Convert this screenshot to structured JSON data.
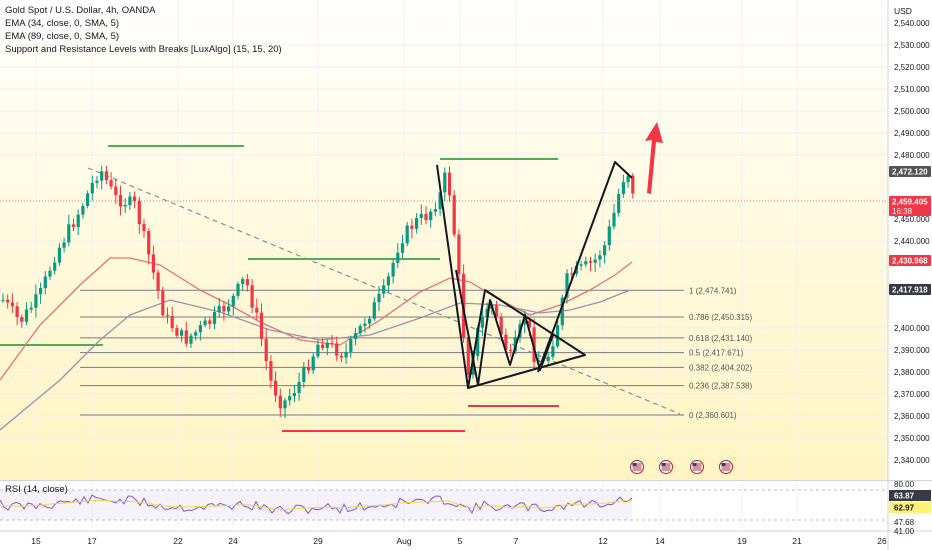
{
  "legend": {
    "title": "Gold Spot / U.S. Dollar, 4h, OANDA",
    "ema34": "EMA (34, close, 0, SMA, 5)",
    "ema89": "EMA (89, close, 0, SMA, 5)",
    "indicator": "Support and Resistance Levels with Breaks [LuxAlgo] (15, 15, 20)"
  },
  "rsi_legend": "RSI (14, close)",
  "currency": "USD",
  "price_axis": {
    "ticks": [
      "2,540.000",
      "2,530.000",
      "2,520.000",
      "2,510.000",
      "2,500.000",
      "2,490.000",
      "2,480.000",
      "2,450.000",
      "2,440.000",
      "2,400.000",
      "2,390.000",
      "2,380.000",
      "2,370.000",
      "2,360.000",
      "2,350.000",
      "2,340.000"
    ],
    "badges": [
      {
        "label": "2,472.120",
        "bg": "#555555",
        "fg": "#ffffff"
      },
      {
        "label": "2,459.405",
        "sub": "16:38",
        "bg": "#f23645",
        "fg": "#ffffff"
      },
      {
        "label": "2,430.968",
        "bg": "#f23645",
        "fg": "#ffffff"
      },
      {
        "label": "2,417.918",
        "bg": "#363a45",
        "fg": "#ffffff"
      }
    ]
  },
  "rsi_axis": {
    "ticks": [
      "80.00",
      "47.68",
      "41.00"
    ],
    "badges": [
      {
        "label": "63.87",
        "bg": "#363a45",
        "fg": "#ffffff"
      },
      {
        "label": "62.97",
        "bg": "#fff176",
        "fg": "#131722"
      }
    ]
  },
  "time_axis": [
    "15",
    "17",
    "22",
    "24",
    "29",
    "Aug",
    "5",
    "7",
    "12",
    "14",
    "19",
    "21",
    "26"
  ],
  "fib_levels": [
    {
      "label": "1 (2,474.741)",
      "value": 2474.741
    },
    {
      "label": "0.786 (2,450.315)",
      "value": 2450.315
    },
    {
      "label": "0.618 (2,431.140)",
      "value": 2431.14
    },
    {
      "label": "0.5 (2,417.671)",
      "value": 2417.671
    },
    {
      "label": "0.382 (2,404.202)",
      "value": 2404.202
    },
    {
      "label": "0.236 (2,387.538)",
      "value": 2387.538
    },
    {
      "label": "0 (2,360.601)",
      "value": 2360.601
    }
  ],
  "colors": {
    "up": "#089981",
    "down": "#f23645",
    "ema34": "#e57373",
    "ema89": "#9e8fb0",
    "support": "#4caf50",
    "resistance": "#f23645"
  },
  "icons": [
    "earnings-flag-icon",
    "earnings-flag-icon",
    "earnings-flag-icon",
    "earnings-flag-icon",
    "earnings-flag-icon"
  ]
}
